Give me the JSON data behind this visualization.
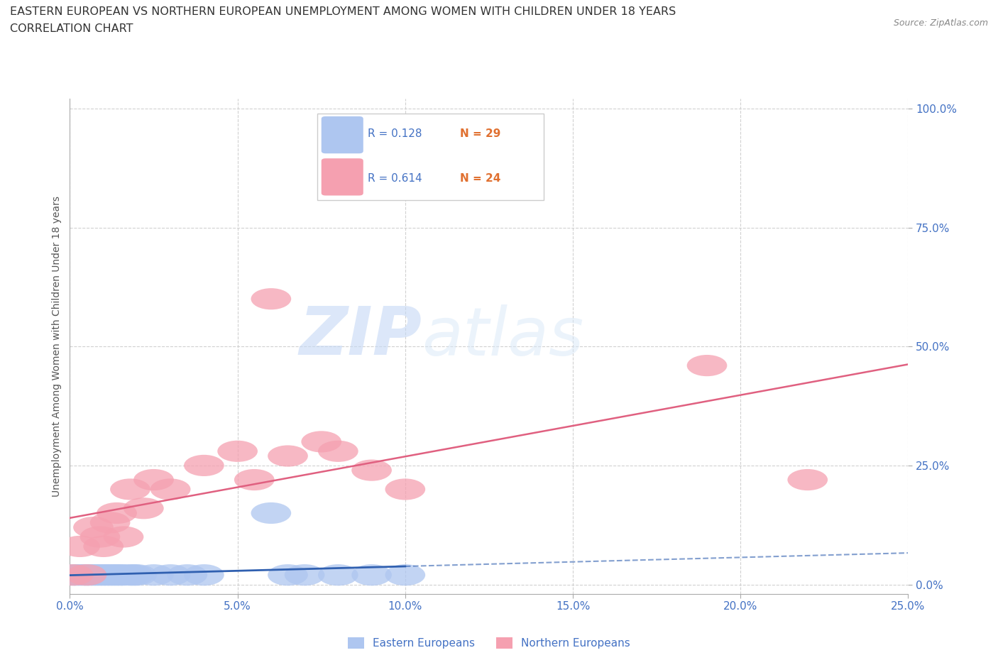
{
  "title_line1": "EASTERN EUROPEAN VS NORTHERN EUROPEAN UNEMPLOYMENT AMONG WOMEN WITH CHILDREN UNDER 18 YEARS",
  "title_line2": "CORRELATION CHART",
  "source": "Source: ZipAtlas.com",
  "ylabel": "Unemployment Among Women with Children Under 18 years",
  "xlim": [
    0.0,
    0.25
  ],
  "ylim": [
    -0.02,
    1.02
  ],
  "yticks": [
    0.0,
    0.25,
    0.5,
    0.75,
    1.0
  ],
  "ytick_labels": [
    "0.0%",
    "25.0%",
    "50.0%",
    "75.0%",
    "100.0%"
  ],
  "xticks": [
    0.0,
    0.05,
    0.1,
    0.15,
    0.2,
    0.25
  ],
  "xtick_labels": [
    "0.0%",
    "5.0%",
    "10.0%",
    "15.0%",
    "20.0%",
    "25.0%"
  ],
  "eastern_color": "#aec6f0",
  "northern_color": "#f5a0b0",
  "eastern_line_color": "#3060b0",
  "northern_line_color": "#e06080",
  "watermark_zip": "ZIP",
  "watermark_atlas": "atlas",
  "legend_r1": "R = 0.128",
  "legend_n1": "N = 29",
  "legend_r2": "R = 0.614",
  "legend_n2": "N = 24",
  "eastern_label": "Eastern Europeans",
  "northern_label": "Northern Europeans",
  "eastern_x": [
    0.001,
    0.002,
    0.003,
    0.004,
    0.005,
    0.006,
    0.007,
    0.008,
    0.009,
    0.01,
    0.011,
    0.012,
    0.013,
    0.014,
    0.015,
    0.016,
    0.018,
    0.019,
    0.02,
    0.025,
    0.03,
    0.035,
    0.04,
    0.06,
    0.065,
    0.07,
    0.08,
    0.09,
    0.1
  ],
  "eastern_y": [
    0.02,
    0.02,
    0.02,
    0.02,
    0.02,
    0.02,
    0.02,
    0.02,
    0.02,
    0.02,
    0.02,
    0.02,
    0.02,
    0.02,
    0.02,
    0.02,
    0.02,
    0.02,
    0.02,
    0.02,
    0.02,
    0.02,
    0.02,
    0.15,
    0.02,
    0.02,
    0.02,
    0.02,
    0.02
  ],
  "northern_x": [
    0.001,
    0.003,
    0.005,
    0.007,
    0.009,
    0.01,
    0.012,
    0.014,
    0.016,
    0.018,
    0.022,
    0.025,
    0.03,
    0.04,
    0.05,
    0.055,
    0.06,
    0.065,
    0.075,
    0.08,
    0.09,
    0.1,
    0.19,
    0.22
  ],
  "northern_y": [
    0.02,
    0.08,
    0.02,
    0.12,
    0.1,
    0.08,
    0.13,
    0.15,
    0.1,
    0.2,
    0.16,
    0.22,
    0.2,
    0.25,
    0.28,
    0.22,
    0.6,
    0.27,
    0.3,
    0.28,
    0.24,
    0.2,
    0.46,
    0.22
  ]
}
